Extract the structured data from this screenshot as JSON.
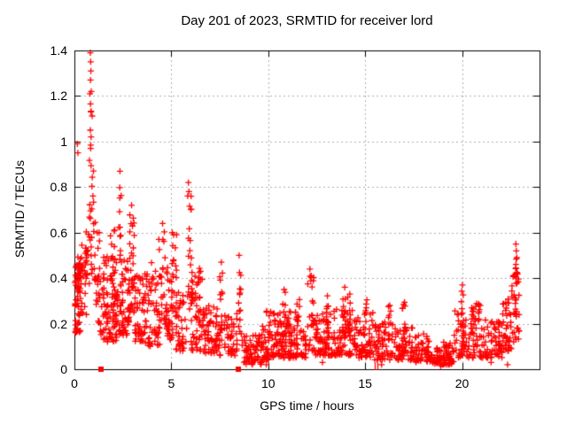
{
  "chart_data": {
    "type": "scatter",
    "title": "Day 201 of 2023, SRMTID for receiver lord",
    "xlabel": "GPS time / hours",
    "ylabel": "SRMTID / TECUs",
    "xlim": [
      0,
      24
    ],
    "ylim": [
      0,
      1.4
    ],
    "xticks": [
      0,
      5,
      10,
      15,
      20
    ],
    "xtick_labels": [
      "0",
      "5",
      "10",
      "15",
      "20"
    ],
    "yticks": [
      0,
      0.2,
      0.4,
      0.6,
      0.8,
      1.0,
      1.2,
      1.4
    ],
    "ytick_labels": [
      "0",
      "0.2",
      "0.4",
      "0.6",
      "0.8",
      "1",
      "1.2",
      "1.4"
    ],
    "grid": true,
    "legend_position": "none",
    "marker": "plus",
    "marker_color": "#ff0000",
    "grid_color": "#b0b0b0",
    "axis_color": "#000000",
    "background_color": "#ffffff",
    "seed": 20230201,
    "clusters": [
      [
        0.02,
        0.35,
        0.16,
        0.5,
        50,
        1.3
      ],
      [
        0.05,
        0.3,
        0.3,
        0.47,
        20,
        1.0
      ],
      [
        0.3,
        0.62,
        0.24,
        0.56,
        20,
        1.2
      ],
      [
        0.55,
        0.78,
        0.33,
        0.62,
        14,
        1.0
      ],
      [
        0.76,
        1.0,
        0.42,
        1.25,
        26,
        1.3
      ],
      [
        1.0,
        1.3,
        0.28,
        0.66,
        20,
        1.2
      ],
      [
        1.2,
        1.55,
        0.15,
        0.42,
        18,
        1.2
      ],
      [
        1.5,
        2.25,
        0.12,
        0.5,
        85,
        1.6
      ],
      [
        1.8,
        2.1,
        0.34,
        0.62,
        15,
        1.0
      ],
      [
        2.28,
        2.45,
        0.45,
        0.84,
        12,
        1.0
      ],
      [
        2.3,
        2.85,
        0.15,
        0.48,
        55,
        1.5
      ],
      [
        2.8,
        3.1,
        0.2,
        0.72,
        35,
        1.3
      ],
      [
        3.1,
        3.6,
        0.12,
        0.42,
        45,
        1.5
      ],
      [
        3.6,
        4.0,
        0.1,
        0.5,
        32,
        1.5
      ],
      [
        4.0,
        4.4,
        0.1,
        0.44,
        32,
        1.4
      ],
      [
        4.35,
        4.8,
        0.18,
        0.63,
        32,
        1.2
      ],
      [
        4.75,
        5.1,
        0.12,
        0.46,
        30,
        1.4
      ],
      [
        5.0,
        5.28,
        0.24,
        0.6,
        14,
        1.0
      ],
      [
        5.2,
        5.8,
        0.08,
        0.36,
        42,
        1.5
      ],
      [
        5.82,
        5.96,
        0.25,
        0.8,
        11,
        1.0
      ],
      [
        5.96,
        6.12,
        0.2,
        0.74,
        10,
        1.0
      ],
      [
        6.0,
        6.6,
        0.08,
        0.42,
        48,
        1.7
      ],
      [
        6.35,
        6.52,
        0.24,
        0.52,
        8,
        1.0
      ],
      [
        6.6,
        7.4,
        0.07,
        0.28,
        58,
        1.6
      ],
      [
        7.5,
        7.66,
        0.12,
        0.45,
        10,
        1.0
      ],
      [
        7.4,
        8.4,
        0.06,
        0.25,
        58,
        1.6
      ],
      [
        8.44,
        8.6,
        0.14,
        0.48,
        12,
        1.0
      ],
      [
        8.6,
        9.7,
        0.02,
        0.16,
        70,
        1.4
      ],
      [
        9.7,
        10.15,
        0.04,
        0.26,
        35,
        1.6
      ],
      [
        10.15,
        11.0,
        0.05,
        0.25,
        70,
        1.6
      ],
      [
        10.75,
        10.92,
        0.14,
        0.35,
        8,
        1.0
      ],
      [
        11.0,
        12.0,
        0.05,
        0.26,
        75,
        1.6
      ],
      [
        11.45,
        11.62,
        0.14,
        0.33,
        8,
        1.0
      ],
      [
        12.0,
        12.38,
        0.08,
        0.42,
        26,
        1.3
      ],
      [
        12.38,
        13.4,
        0.06,
        0.25,
        75,
        1.6
      ],
      [
        12.95,
        13.12,
        0.14,
        0.34,
        8,
        1.0
      ],
      [
        13.4,
        14.45,
        0.06,
        0.27,
        75,
        1.6
      ],
      [
        13.85,
        14.02,
        0.14,
        0.36,
        8,
        1.0
      ],
      [
        14.1,
        14.26,
        0.14,
        0.34,
        7,
        1.0
      ],
      [
        14.45,
        15.45,
        0.05,
        0.25,
        70,
        1.6
      ],
      [
        14.95,
        15.12,
        0.13,
        0.33,
        7,
        1.0
      ],
      [
        15.45,
        16.45,
        0.04,
        0.21,
        62,
        1.5
      ],
      [
        16.2,
        16.36,
        0.12,
        0.3,
        7,
        1.0
      ],
      [
        16.45,
        17.45,
        0.04,
        0.19,
        62,
        1.5
      ],
      [
        16.9,
        17.06,
        0.12,
        0.3,
        7,
        1.0
      ],
      [
        17.45,
        18.45,
        0.03,
        0.16,
        58,
        1.4
      ],
      [
        18.45,
        19.6,
        0.02,
        0.12,
        75,
        1.3
      ],
      [
        19.6,
        20.3,
        0.05,
        0.26,
        42,
        1.5
      ],
      [
        19.95,
        20.12,
        0.14,
        0.36,
        8,
        1.0
      ],
      [
        20.3,
        21.1,
        0.05,
        0.29,
        52,
        1.5
      ],
      [
        20.45,
        20.62,
        0.14,
        0.32,
        7,
        1.0
      ],
      [
        21.1,
        22.1,
        0.05,
        0.22,
        62,
        1.5
      ],
      [
        22.1,
        22.55,
        0.08,
        0.31,
        36,
        1.4
      ],
      [
        22.55,
        22.95,
        0.12,
        0.46,
        32,
        1.2
      ],
      [
        22.7,
        22.92,
        0.36,
        0.5,
        10,
        1.0
      ]
    ],
    "highlight_points": [
      [
        0.82,
        1.39
      ],
      [
        0.84,
        1.35
      ],
      [
        0.85,
        1.31
      ],
      [
        0.83,
        1.27
      ],
      [
        0.87,
        1.22
      ],
      [
        0.8,
        1.21
      ],
      [
        0.85,
        1.13
      ],
      [
        0.82,
        1.05
      ],
      [
        0.86,
        1.02
      ],
      [
        0.84,
        0.97
      ],
      [
        0.15,
        0.99
      ],
      [
        0.18,
        0.95
      ],
      [
        2.35,
        0.87
      ],
      [
        2.95,
        0.72
      ],
      [
        4.55,
        0.64
      ],
      [
        5.05,
        0.6
      ],
      [
        5.88,
        0.82
      ],
      [
        5.91,
        0.78
      ],
      [
        6.02,
        0.76
      ],
      [
        7.58,
        0.47
      ],
      [
        8.5,
        0.5
      ],
      [
        10.82,
        0.35
      ],
      [
        12.15,
        0.44
      ],
      [
        12.22,
        0.41
      ],
      [
        13.95,
        0.36
      ],
      [
        20.02,
        0.37
      ],
      [
        22.78,
        0.55
      ],
      [
        22.8,
        0.52
      ],
      [
        22.83,
        0.49
      ],
      [
        9.9,
        0.02
      ],
      [
        12.8,
        0.03
      ],
      [
        15.85,
        0.02
      ],
      [
        18.9,
        0.015
      ],
      [
        19.2,
        0.02
      ],
      [
        21.5,
        0.03
      ],
      [
        22.35,
        0.02
      ]
    ],
    "axis_squares": [
      [
        1.37,
        0
      ],
      [
        8.46,
        0
      ]
    ],
    "axis_double_marks": [
      [
        15.5,
        0
      ],
      [
        15.62,
        0
      ]
    ]
  }
}
